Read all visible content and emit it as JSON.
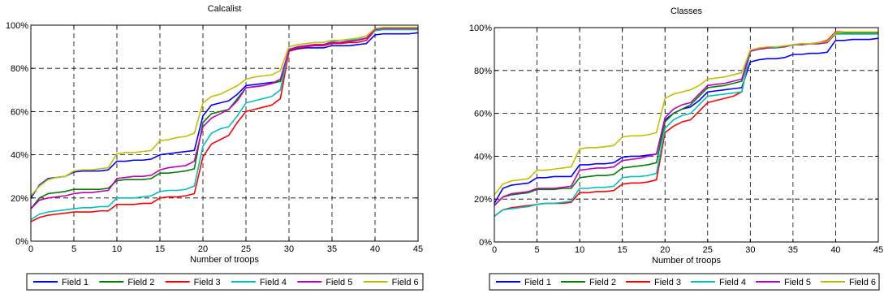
{
  "chart_data": [
    {
      "type": "line",
      "title": "Calcalist",
      "xlabel": "Number of troops",
      "ylabel": "",
      "xlim": [
        0,
        45
      ],
      "ylim": [
        0,
        100
      ],
      "xticks": [
        "0",
        "5",
        "10",
        "15",
        "20",
        "25",
        "30",
        "35",
        "40",
        "45"
      ],
      "yticks": [
        "0%",
        "20%",
        "40%",
        "60%",
        "80%",
        "100%"
      ],
      "grid": true,
      "legend": "bottom",
      "x": [
        0,
        1,
        2,
        3,
        4,
        5,
        6,
        7,
        8,
        9,
        10,
        11,
        12,
        13,
        14,
        15,
        16,
        17,
        18,
        19,
        20,
        21,
        22,
        23,
        24,
        25,
        26,
        27,
        28,
        29,
        30,
        31,
        32,
        33,
        34,
        35,
        36,
        37,
        38,
        39,
        40,
        41,
        42,
        43,
        44,
        45
      ],
      "series": [
        {
          "name": "Field 1",
          "color": "#0000ff",
          "values": [
            20,
            26,
            29,
            29.5,
            30,
            32,
            32.5,
            32.5,
            32.5,
            33,
            37,
            37,
            37.5,
            37.5,
            38,
            40,
            40.5,
            41,
            41.5,
            42,
            58,
            63,
            64,
            65,
            68,
            72,
            72.5,
            73,
            73.5,
            74,
            88,
            89,
            89.5,
            89.5,
            89.5,
            90.5,
            90.5,
            90.5,
            91,
            91.5,
            95.5,
            96,
            96,
            96,
            96,
            96.5
          ]
        },
        {
          "name": "Field 2",
          "color": "#008000",
          "values": [
            15,
            20,
            22,
            22.5,
            23,
            24,
            24,
            24,
            24,
            24.5,
            28,
            28.5,
            28.5,
            28.5,
            29,
            31.5,
            31.5,
            32,
            32.5,
            33.5,
            55,
            59,
            60,
            61,
            66,
            71,
            71.5,
            72,
            73,
            74,
            88,
            90,
            90.5,
            91,
            91,
            92,
            92,
            92.5,
            93,
            94,
            97.5,
            98,
            98,
            98,
            98,
            98
          ]
        },
        {
          "name": "Field 3",
          "color": "#ff0000",
          "values": [
            9,
            11,
            12,
            12.5,
            13,
            13.5,
            13.5,
            13.5,
            14,
            14,
            17,
            17,
            17,
            17.5,
            17.5,
            20,
            20.5,
            20.5,
            21,
            22,
            39,
            45,
            47,
            49,
            55,
            60,
            61,
            62,
            63,
            66,
            88,
            89.5,
            90,
            90.5,
            90.5,
            91.5,
            91.5,
            92,
            92,
            93,
            97.5,
            98,
            98,
            98,
            98,
            98
          ]
        },
        {
          "name": "Field 4",
          "color": "#00c0c0",
          "values": [
            10,
            12.5,
            13.5,
            14,
            14.5,
            15,
            15.5,
            15.5,
            16,
            16,
            20,
            20,
            20,
            20.5,
            21,
            23,
            23.5,
            23.5,
            24,
            25.5,
            44,
            50,
            52,
            53,
            58,
            64,
            65,
            66,
            67,
            70,
            89,
            90,
            90.5,
            91,
            91,
            92.5,
            93,
            93,
            93.5,
            94,
            97.5,
            98,
            98,
            98,
            98,
            98
          ]
        },
        {
          "name": "Field 5",
          "color": "#c000c0",
          "values": [
            15,
            19,
            20,
            20.5,
            21,
            22,
            22.5,
            22.5,
            23,
            23.5,
            29,
            29.5,
            30,
            30,
            30.5,
            33,
            34,
            34.5,
            35,
            37,
            53,
            57,
            59,
            61,
            65,
            71,
            71.5,
            72,
            73,
            75,
            88.5,
            90,
            90.5,
            91,
            91,
            92,
            92,
            92.5,
            93,
            94,
            98,
            98.5,
            98.5,
            98.5,
            98.5,
            98.5
          ]
        },
        {
          "name": "Field 6",
          "color": "#c0c000",
          "values": [
            21,
            25.5,
            28.5,
            29.5,
            30,
            32.5,
            33,
            33,
            33.5,
            34,
            40.5,
            41,
            41,
            41.5,
            42,
            46.5,
            47,
            48,
            48.5,
            50,
            64,
            67,
            68,
            70,
            72,
            75,
            76,
            76.5,
            77,
            79,
            90,
            91,
            91.5,
            92,
            92,
            93,
            93,
            93.5,
            94,
            95,
            98.5,
            99,
            99,
            99,
            99,
            99
          ]
        }
      ]
    },
    {
      "type": "line",
      "title": "Classes",
      "xlabel": "Number of troops",
      "ylabel": "",
      "xlim": [
        0,
        45
      ],
      "ylim": [
        0,
        100
      ],
      "xticks": [
        "0",
        "5",
        "10",
        "15",
        "20",
        "25",
        "30",
        "35",
        "40",
        "45"
      ],
      "yticks": [
        "0%",
        "20%",
        "40%",
        "60%",
        "80%",
        "100%"
      ],
      "grid": true,
      "legend": "bottom",
      "x": [
        0,
        1,
        2,
        3,
        4,
        5,
        6,
        7,
        8,
        9,
        10,
        11,
        12,
        13,
        14,
        15,
        16,
        17,
        18,
        19,
        20,
        21,
        22,
        23,
        24,
        25,
        26,
        27,
        28,
        29,
        30,
        31,
        32,
        33,
        34,
        35,
        36,
        37,
        38,
        39,
        40,
        41,
        42,
        43,
        44,
        45
      ],
      "series": [
        {
          "name": "Field 1",
          "color": "#0000ff",
          "values": [
            18,
            25,
            26.5,
            27,
            27.5,
            30,
            30,
            30.5,
            30.5,
            30.5,
            36,
            36,
            36.5,
            36.5,
            37,
            39.5,
            40,
            40,
            40.5,
            41,
            57,
            60,
            62,
            63,
            66,
            70,
            70.5,
            71,
            71.5,
            72,
            84,
            85,
            85.5,
            85.5,
            86,
            87.5,
            87.5,
            88,
            88,
            88.5,
            94,
            94,
            94.5,
            94.5,
            94.5,
            95
          ]
        },
        {
          "name": "Field 2",
          "color": "#008000",
          "values": [
            17,
            21,
            22,
            22.5,
            23,
            24.5,
            24.5,
            24.5,
            25,
            25,
            30,
            30.5,
            31,
            31,
            31.5,
            34.5,
            35,
            35.5,
            36,
            37,
            56,
            60,
            62,
            64,
            68,
            72,
            72.5,
            73,
            74,
            75,
            89,
            90,
            90.5,
            90.5,
            91,
            92,
            92,
            92.5,
            92.5,
            93,
            97,
            97.5,
            97.5,
            97.5,
            97.5,
            97.5
          ]
        },
        {
          "name": "Field 3",
          "color": "#ff0000",
          "values": [
            12,
            15,
            16,
            16.5,
            17,
            17.5,
            18,
            18,
            18,
            18.5,
            23,
            23,
            23.5,
            23.5,
            24,
            27,
            27.5,
            27.5,
            28,
            29,
            51,
            54,
            56,
            57,
            61,
            65,
            66,
            67,
            68,
            70,
            89,
            90,
            90.5,
            91,
            91,
            92,
            92.5,
            92.5,
            93,
            94,
            98,
            98,
            98,
            98,
            98,
            98
          ]
        },
        {
          "name": "Field 4",
          "color": "#00c0c0",
          "values": [
            12,
            15,
            15.5,
            16,
            16.5,
            17.5,
            18,
            18,
            18.5,
            19,
            25,
            25,
            25.5,
            25.5,
            26,
            30,
            30.5,
            30.5,
            31,
            32,
            53,
            57,
            59,
            60,
            64,
            68,
            68.5,
            69,
            69.5,
            70,
            89,
            90,
            90.5,
            90.5,
            91,
            92,
            92,
            92.5,
            92.5,
            93,
            97,
            97,
            97,
            97,
            97,
            97
          ]
        },
        {
          "name": "Field 5",
          "color": "#c000c0",
          "values": [
            17,
            21,
            22.5,
            23,
            23.5,
            25,
            25,
            25,
            25.5,
            26,
            33.5,
            34,
            34.5,
            34.5,
            35,
            38,
            38.5,
            39,
            40,
            41,
            58,
            62,
            64,
            65,
            69,
            73,
            73.5,
            74,
            75,
            76,
            89,
            90,
            90.5,
            91,
            91,
            92,
            92,
            92.5,
            92.5,
            93,
            97.5,
            98,
            98,
            98,
            98,
            98
          ]
        },
        {
          "name": "Field 6",
          "color": "#c0c000",
          "values": [
            22,
            27,
            28.5,
            29,
            29.5,
            33.5,
            33.5,
            34,
            34.5,
            35,
            43.5,
            44,
            44,
            44.5,
            45,
            49,
            49.5,
            49.5,
            50,
            51,
            67,
            69,
            70,
            71,
            73,
            76,
            76.5,
            77,
            78,
            79,
            89.5,
            90.5,
            91,
            91,
            91.5,
            92,
            92.5,
            92.5,
            93,
            93.5,
            97.5,
            98,
            98,
            98,
            98,
            98
          ]
        }
      ]
    }
  ]
}
